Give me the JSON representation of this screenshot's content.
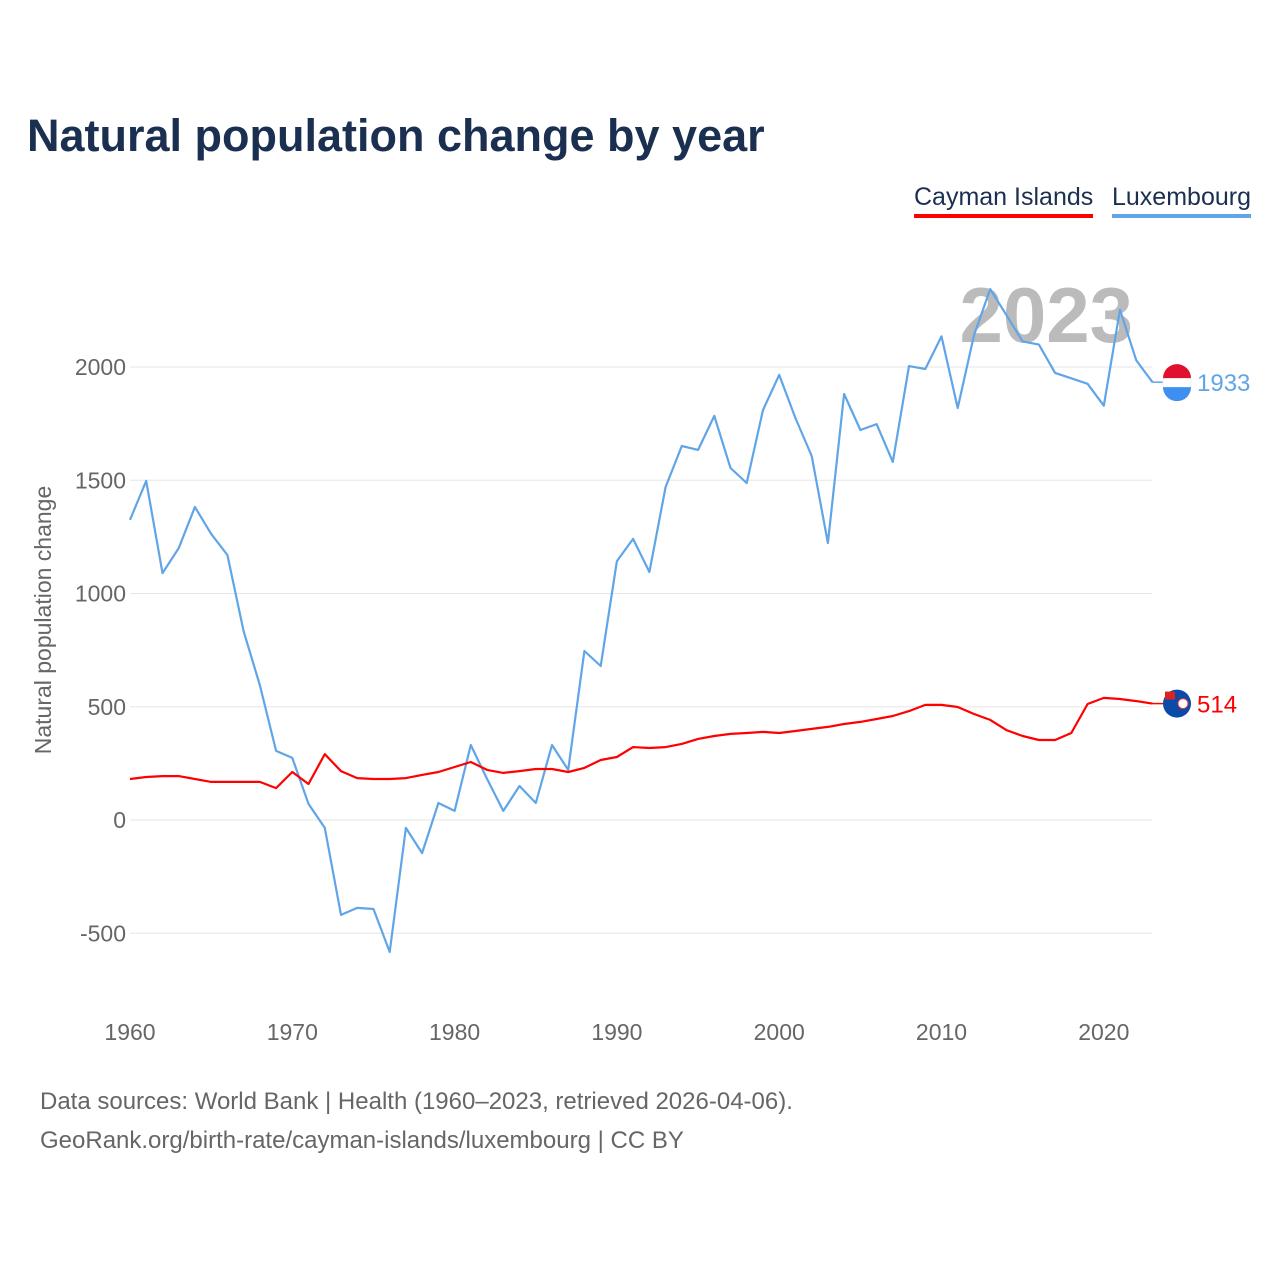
{
  "chart_data": {
    "type": "line",
    "title": "Natural population change by year",
    "xlabel": "",
    "ylabel": "Natural population change",
    "xlim": [
      1960,
      2023
    ],
    "ylim": [
      -800,
      2450
    ],
    "yticks": [
      -500,
      0,
      500,
      1000,
      1500,
      2000
    ],
    "xticks": [
      1960,
      1970,
      1980,
      1990,
      2000,
      2010,
      2020
    ],
    "grid": true,
    "legend_position": "top-right",
    "current_year_label": "2023",
    "x": [
      1960,
      1961,
      1962,
      1963,
      1964,
      1965,
      1966,
      1967,
      1968,
      1969,
      1970,
      1971,
      1972,
      1973,
      1974,
      1975,
      1976,
      1977,
      1978,
      1979,
      1980,
      1981,
      1982,
      1983,
      1984,
      1985,
      1986,
      1987,
      1988,
      1989,
      1990,
      1991,
      1992,
      1993,
      1994,
      1995,
      1996,
      1997,
      1998,
      1999,
      2000,
      2001,
      2002,
      2003,
      2004,
      2005,
      2006,
      2007,
      2008,
      2009,
      2010,
      2011,
      2012,
      2013,
      2014,
      2015,
      2016,
      2017,
      2018,
      2019,
      2020,
      2021,
      2022,
      2023
    ],
    "series": [
      {
        "name": "Cayman Islands",
        "color": "#ff0000",
        "end_label": "514",
        "values": [
          181,
          190,
          194,
          194,
          181,
          168,
          168,
          168,
          168,
          141,
          212,
          159,
          291,
          216,
          185,
          181,
          181,
          185,
          199,
          212,
          234,
          256,
          221,
          208,
          216,
          225,
          225,
          212,
          230,
          265,
          278,
          322,
          318,
          322,
          336,
          358,
          371,
          380,
          384,
          389,
          384,
          393,
          402,
          411,
          424,
          433,
          446,
          459,
          481,
          508,
          508,
          499,
          468,
          442,
          397,
          371,
          353,
          353,
          384,
          512,
          539,
          534,
          525,
          514
        ]
      },
      {
        "name": "Luxembourg",
        "color": "#5fa5e8",
        "end_label": "1933",
        "values": [
          1325,
          1497,
          1090,
          1200,
          1382,
          1263,
          1170,
          834,
          596,
          305,
          274,
          71,
          -35,
          -419,
          -388,
          -393,
          -583,
          -35,
          -146,
          75,
          40,
          331,
          181,
          40,
          150,
          75,
          331,
          221,
          746,
          680,
          1143,
          1241,
          1095,
          1470,
          1651,
          1634,
          1784,
          1554,
          1488,
          1810,
          1965,
          1775,
          1607,
          1223,
          1881,
          1722,
          1748,
          1581,
          2004,
          1991,
          2135,
          1819,
          2140,
          2344,
          2229,
          2113,
          2099,
          1974,
          1950,
          1926,
          1829,
          2253,
          2029,
          1933
        ]
      }
    ]
  },
  "sources": {
    "line1": "Data sources: World Bank | Health (1960–2023, retrieved 2026-04-06).",
    "line2": "GeoRank.org/birth-rate/cayman-islands/luxembourg | CC BY"
  }
}
